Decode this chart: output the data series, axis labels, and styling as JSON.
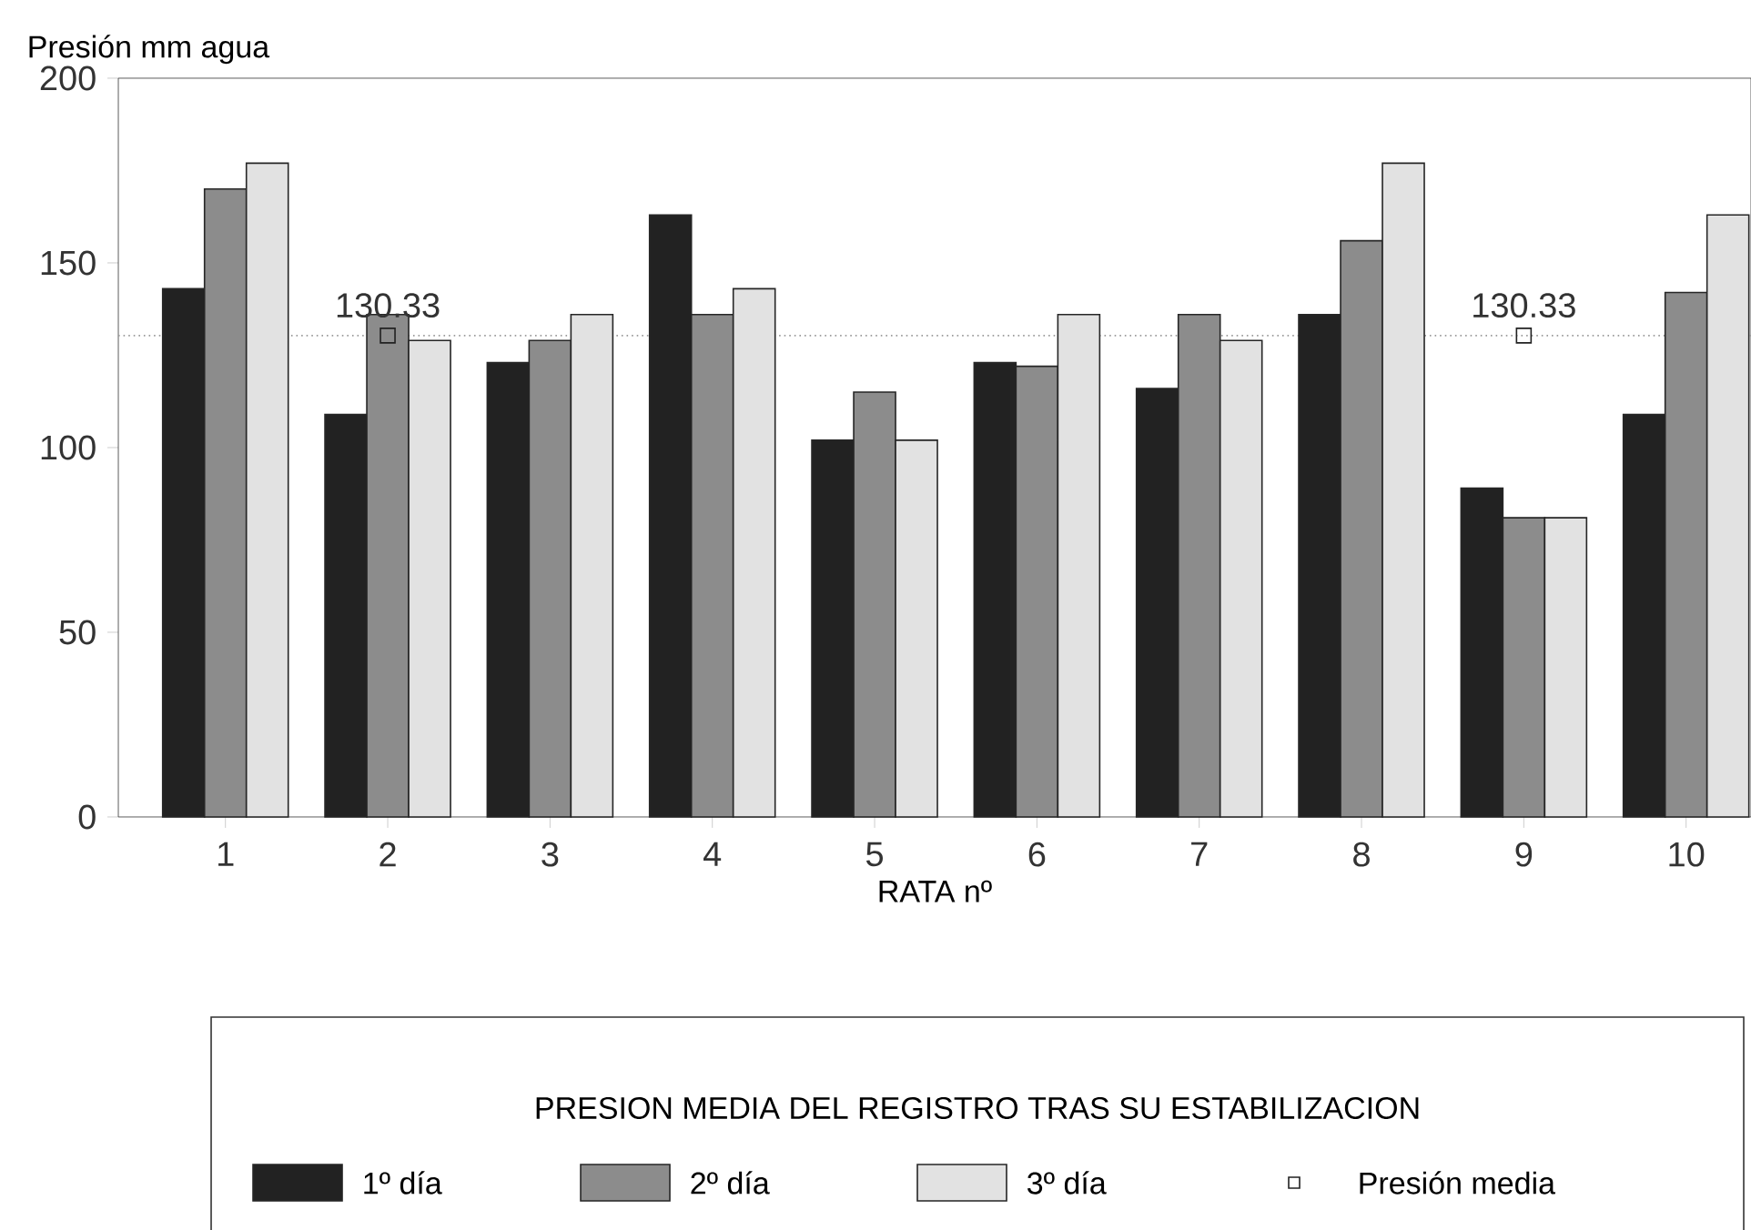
{
  "chart_data": {
    "type": "bar",
    "ylabel": "Presión mm agua",
    "xlabel": "RATA nº",
    "legend_title": "PRESION MEDIA DEL REGISTRO TRAS SU ESTABILIZACION",
    "legend": "bottom",
    "categories": [
      "1",
      "2",
      "3",
      "4",
      "5",
      "6",
      "7",
      "8",
      "9",
      "10"
    ],
    "series": [
      {
        "name": "1º día",
        "color": "#222222",
        "values": [
          143,
          109,
          123,
          163,
          102,
          123,
          116,
          136,
          89,
          109
        ]
      },
      {
        "name": "2º día",
        "color": "#8c8c8c",
        "values": [
          170,
          136,
          129,
          136,
          115,
          122,
          136,
          156,
          81,
          142
        ]
      },
      {
        "name": "3º día",
        "color": "#e2e2e2",
        "values": [
          177,
          129,
          136,
          143,
          102,
          136,
          129,
          177,
          81,
          163
        ]
      },
      {
        "name": "Presión media",
        "type": "scatter",
        "marker": "square",
        "color": "#222222",
        "x": [
          "2",
          "9"
        ],
        "values": [
          130.33,
          130.33
        ],
        "value_labels": [
          "130.33",
          "130.33"
        ]
      }
    ],
    "ref_lines": [
      {
        "axis": "y",
        "value": 130.33,
        "line_style": "dotted",
        "color": "#999999"
      }
    ],
    "ylim": [
      0,
      200
    ],
    "yticks": [
      0,
      50,
      100,
      150,
      200
    ],
    "grid": false
  }
}
